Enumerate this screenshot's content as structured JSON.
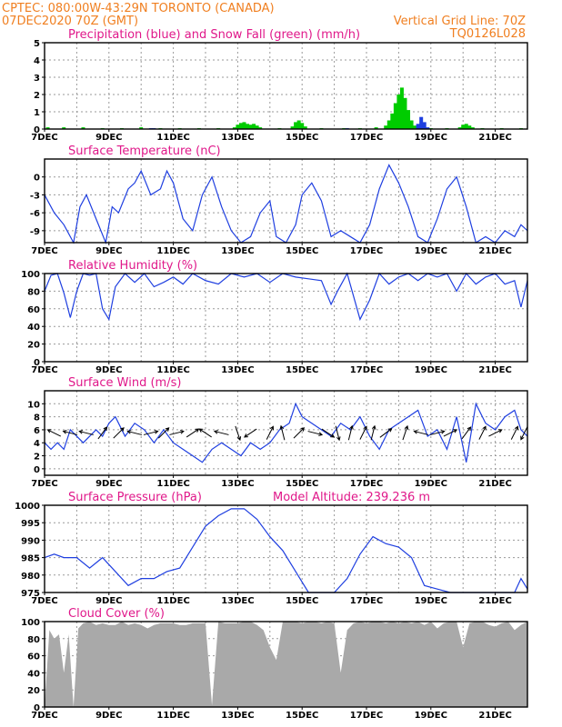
{
  "header": {
    "line1_left": "CPTEC:   080:00W-43:29N   TORONTO (CANADA)",
    "line2_left": "07DEC2020 70Z (GMT)",
    "line2_right": "Vertical Grid Line: 70Z",
    "line3_right": "TQ0126L028"
  },
  "colors": {
    "header": "#f07f20",
    "panel_title": "#e0188a",
    "line": "#1f3fe0",
    "precip": "#1f3fe0",
    "snow": "#00cc00",
    "cloud": "#a9a9a9"
  },
  "chart_data": [
    {
      "type": "bar",
      "title": "Precipitation (blue) and Snow Fall (green) (mm/h)",
      "ylim": [
        0,
        5
      ],
      "yticks": [
        0,
        1,
        2,
        3,
        4,
        5
      ],
      "xlim": [
        0,
        15
      ],
      "xticks": [
        "7DEC",
        "9DEC",
        "11DEC",
        "13DEC",
        "15DEC",
        "17DEC",
        "19DEC",
        "21DEC"
      ],
      "grid": true,
      "series": [
        {
          "name": "Snow Fall",
          "color": "green",
          "x": [
            0.1,
            0.6,
            1.2,
            1.8,
            2.4,
            3.0,
            3.6,
            4.2,
            4.8,
            5.4,
            5.9,
            6.0,
            6.1,
            6.2,
            6.3,
            6.4,
            6.5,
            6.6,
            6.7,
            7.3,
            7.7,
            7.8,
            7.9,
            8.0,
            8.1,
            8.6,
            9.3,
            9.8,
            10.3,
            10.6,
            10.7,
            10.8,
            10.9,
            11.0,
            11.1,
            11.2,
            11.3,
            11.4,
            11.5,
            11.6,
            11.7,
            11.8,
            11.9,
            12.0,
            12.5,
            12.9,
            13.0,
            13.1,
            13.2,
            13.3,
            13.6,
            14.2,
            14.8
          ],
          "values": [
            0.1,
            0.1,
            0.1,
            0.05,
            0.05,
            0.1,
            0.05,
            0.05,
            0.05,
            0.05,
            0.1,
            0.25,
            0.35,
            0.4,
            0.3,
            0.25,
            0.3,
            0.2,
            0.1,
            0.05,
            0.15,
            0.4,
            0.5,
            0.35,
            0.15,
            0.05,
            0.05,
            0.05,
            0.1,
            0.2,
            0.5,
            0.9,
            1.5,
            2.0,
            2.4,
            1.8,
            1.1,
            0.5,
            0.2,
            0.1,
            0.05,
            0.05,
            0.05,
            0.05,
            0.05,
            0.1,
            0.25,
            0.3,
            0.2,
            0.1,
            0.05,
            0.05,
            0.05
          ]
        },
        {
          "name": "Precipitation",
          "color": "blue",
          "x": [
            3.3,
            3.4,
            9.4,
            11.6,
            11.7,
            11.8,
            11.9
          ],
          "values": [
            0.05,
            0.05,
            0.05,
            0.3,
            0.7,
            0.4,
            0.1
          ]
        }
      ]
    },
    {
      "type": "line",
      "title": "Surface Temperature (nC)",
      "ylim": [
        -11,
        3
      ],
      "yticks": [
        -9,
        -6,
        -3,
        0
      ],
      "xlim": [
        0,
        15
      ],
      "xticks": [
        "7DEC",
        "9DEC",
        "11DEC",
        "13DEC",
        "15DEC",
        "17DEC",
        "19DEC",
        "21DEC"
      ],
      "grid": true,
      "series": [
        {
          "name": "",
          "x": [
            0,
            0.3,
            0.6,
            0.9,
            1.1,
            1.3,
            1.6,
            1.9,
            2.1,
            2.3,
            2.6,
            2.8,
            3.0,
            3.3,
            3.6,
            3.8,
            4.0,
            4.3,
            4.6,
            4.9,
            5.2,
            5.5,
            5.8,
            6.1,
            6.4,
            6.7,
            7.0,
            7.2,
            7.5,
            7.8,
            8.0,
            8.3,
            8.6,
            8.9,
            9.2,
            9.5,
            9.8,
            10.1,
            10.4,
            10.7,
            11.0,
            11.3,
            11.6,
            11.9,
            12.2,
            12.5,
            12.8,
            13.1,
            13.4,
            13.7,
            14.0,
            14.3,
            14.6,
            14.8,
            15.0
          ],
          "values": [
            -3,
            -6,
            -8,
            -11,
            -5,
            -3,
            -7,
            -11,
            -5,
            -6,
            -2,
            -1,
            1,
            -3,
            -2,
            1,
            -1,
            -7,
            -9,
            -3,
            0,
            -5,
            -9,
            -11,
            -10,
            -6,
            -4,
            -10,
            -11,
            -8,
            -3,
            -1,
            -4,
            -10,
            -9,
            -10,
            -11,
            -8,
            -2,
            2,
            -1,
            -5,
            -10,
            -11,
            -7,
            -2,
            0,
            -5,
            -11,
            -10,
            -11,
            -9,
            -10,
            -8,
            -9
          ]
        }
      ]
    },
    {
      "type": "line",
      "title": "Relative Humidity (%)",
      "ylim": [
        0,
        100
      ],
      "yticks": [
        0,
        20,
        40,
        60,
        80,
        100
      ],
      "xlim": [
        0,
        15
      ],
      "xticks": [
        "7DEC",
        "9DEC",
        "11DEC",
        "13DEC",
        "15DEC",
        "17DEC",
        "19DEC",
        "21DEC"
      ],
      "grid": true,
      "series": [
        {
          "name": "",
          "x": [
            0,
            0.2,
            0.4,
            0.6,
            0.8,
            1.0,
            1.2,
            1.4,
            1.6,
            1.8,
            2.0,
            2.2,
            2.5,
            2.8,
            3.1,
            3.4,
            3.7,
            4.0,
            4.3,
            4.6,
            5.0,
            5.4,
            5.8,
            6.2,
            6.6,
            7.0,
            7.4,
            7.8,
            8.2,
            8.6,
            8.9,
            9.1,
            9.4,
            9.8,
            10.1,
            10.4,
            10.7,
            11.0,
            11.3,
            11.6,
            11.9,
            12.2,
            12.5,
            12.8,
            13.1,
            13.4,
            13.7,
            14.0,
            14.3,
            14.6,
            14.8,
            15.0
          ],
          "values": [
            80,
            98,
            100,
            78,
            50,
            80,
            100,
            98,
            100,
            60,
            48,
            85,
            100,
            90,
            100,
            85,
            90,
            96,
            88,
            100,
            92,
            88,
            100,
            96,
            100,
            90,
            100,
            96,
            94,
            92,
            65,
            80,
            100,
            48,
            70,
            100,
            88,
            96,
            100,
            92,
            100,
            96,
            100,
            80,
            100,
            88,
            96,
            100,
            88,
            92,
            62,
            92
          ]
        }
      ]
    },
    {
      "type": "line",
      "title": "Surface Wind (m/s)",
      "ylim": [
        -1,
        12
      ],
      "yticks": [
        0,
        2,
        4,
        6,
        8,
        10
      ],
      "xlim": [
        0,
        15
      ],
      "xticks": [
        "7DEC",
        "9DEC",
        "11DEC",
        "13DEC",
        "15DEC",
        "17DEC",
        "19DEC",
        "21DEC"
      ],
      "grid": true,
      "series": [
        {
          "name": "",
          "x": [
            0,
            0.2,
            0.4,
            0.6,
            0.8,
            1.0,
            1.2,
            1.4,
            1.6,
            1.8,
            2.0,
            2.2,
            2.5,
            2.8,
            3.1,
            3.4,
            3.7,
            4.0,
            4.3,
            4.6,
            4.9,
            5.2,
            5.5,
            5.8,
            6.1,
            6.4,
            6.7,
            7.0,
            7.3,
            7.6,
            7.8,
            8.0,
            8.3,
            8.6,
            8.9,
            9.2,
            9.5,
            9.8,
            10.1,
            10.4,
            10.7,
            11.0,
            11.3,
            11.6,
            11.9,
            12.2,
            12.5,
            12.8,
            13.1,
            13.4,
            13.7,
            14.0,
            14.3,
            14.6,
            14.8,
            15.0
          ],
          "values": [
            4,
            3,
            4,
            3,
            6,
            5,
            4,
            5,
            6,
            5,
            7,
            8,
            5,
            7,
            6,
            4,
            6,
            4,
            3,
            2,
            1,
            3,
            4,
            3,
            2,
            4,
            3,
            4,
            6,
            7,
            10,
            8,
            7,
            6,
            5,
            7,
            6,
            8,
            5,
            3,
            6,
            7,
            8,
            9,
            5,
            6,
            3,
            8,
            1,
            10,
            7,
            6,
            8,
            9,
            6,
            5
          ]
        }
      ],
      "wind_arrows": [
        {
          "x": 0.3,
          "u": -2,
          "v": 1
        },
        {
          "x": 0.8,
          "u": -2,
          "v": 0.5
        },
        {
          "x": 1.3,
          "u": -2,
          "v": 0.5
        },
        {
          "x": 1.8,
          "u": 1.5,
          "v": 2
        },
        {
          "x": 2.3,
          "u": 2,
          "v": 2
        },
        {
          "x": 2.8,
          "u": -2,
          "v": 0.5
        },
        {
          "x": 3.3,
          "u": 2,
          "v": 0.5
        },
        {
          "x": 3.7,
          "u": 1.5,
          "v": 1.5
        },
        {
          "x": 4.1,
          "u": 2,
          "v": 0.5
        },
        {
          "x": 4.6,
          "u": 1.5,
          "v": 1
        },
        {
          "x": 5.0,
          "u": -1.5,
          "v": 1
        },
        {
          "x": 5.5,
          "u": -2,
          "v": 0.5
        },
        {
          "x": 6.0,
          "u": 0.5,
          "v": -1.5
        },
        {
          "x": 6.4,
          "u": -1.5,
          "v": -1
        },
        {
          "x": 7.0,
          "u": 1,
          "v": 2
        },
        {
          "x": 7.4,
          "u": -0.5,
          "v": 2
        },
        {
          "x": 7.9,
          "u": 1.5,
          "v": 1.5
        },
        {
          "x": 8.4,
          "u": 2,
          "v": -0.5
        },
        {
          "x": 8.8,
          "u": 1.5,
          "v": -1
        },
        {
          "x": 9.1,
          "u": 0.5,
          "v": -2
        },
        {
          "x": 9.5,
          "u": 0.5,
          "v": 2
        },
        {
          "x": 9.9,
          "u": 1,
          "v": 2
        },
        {
          "x": 10.2,
          "u": 0.5,
          "v": 2
        },
        {
          "x": 10.6,
          "u": 2,
          "v": 1.5
        },
        {
          "x": 11.2,
          "u": 0.5,
          "v": 1.5
        },
        {
          "x": 11.7,
          "u": -2,
          "v": 0.5
        },
        {
          "x": 12.2,
          "u": 2,
          "v": 0.5
        },
        {
          "x": 12.6,
          "u": 2,
          "v": 1
        },
        {
          "x": 13.1,
          "u": 1.5,
          "v": 2
        },
        {
          "x": 13.6,
          "u": 1,
          "v": 2
        },
        {
          "x": 14.0,
          "u": 2,
          "v": 1
        },
        {
          "x": 14.6,
          "u": 1,
          "v": 2
        },
        {
          "x": 14.9,
          "u": -1,
          "v": -2
        }
      ]
    },
    {
      "type": "line",
      "title": "Surface Pressure (hPa)",
      "annotation": "Model Altitude: 239.236  m",
      "ylim": [
        975,
        1000
      ],
      "yticks": [
        975,
        980,
        985,
        990,
        995,
        1000
      ],
      "xlim": [
        0,
        15
      ],
      "xticks": [
        "7DEC",
        "9DEC",
        "11DEC",
        "13DEC",
        "15DEC",
        "17DEC",
        "19DEC",
        "21DEC"
      ],
      "grid": true,
      "series": [
        {
          "name": "",
          "x": [
            0,
            0.3,
            0.6,
            1.0,
            1.4,
            1.8,
            2.2,
            2.6,
            3.0,
            3.4,
            3.8,
            4.2,
            4.6,
            5.0,
            5.4,
            5.8,
            6.2,
            6.6,
            7.0,
            7.4,
            7.8,
            8.2,
            8.6,
            9.0,
            9.4,
            9.8,
            10.2,
            10.6,
            11.0,
            11.4,
            11.8,
            12.2,
            12.6,
            13.0,
            13.4,
            13.8,
            14.2,
            14.6,
            14.8,
            15.0
          ],
          "values": [
            985,
            986,
            985,
            985,
            982,
            985,
            981,
            977,
            979,
            979,
            981,
            982,
            988,
            994,
            997,
            999,
            999,
            996,
            991,
            987,
            981,
            975,
            974,
            974,
            979,
            986,
            991,
            989,
            988,
            985,
            977,
            976,
            975,
            974,
            975,
            974,
            974,
            975,
            979,
            976
          ]
        }
      ]
    },
    {
      "type": "area",
      "title": "Cloud Cover (%)",
      "ylim": [
        0,
        100
      ],
      "yticks": [
        0,
        20,
        40,
        60,
        80,
        100
      ],
      "xlim": [
        0,
        15
      ],
      "xticks": [
        "7DEC",
        "9DEC",
        "11DEC",
        "13DEC",
        "15DEC",
        "17DEC",
        "19DEC",
        "21DEC"
      ],
      "grid": true,
      "series": [
        {
          "name": "",
          "x": [
            0,
            0.15,
            0.3,
            0.45,
            0.6,
            0.75,
            0.9,
            1.05,
            1.2,
            1.4,
            1.6,
            1.8,
            2.0,
            2.2,
            2.4,
            2.6,
            2.8,
            3.0,
            3.2,
            3.4,
            3.6,
            3.8,
            4.0,
            4.2,
            4.4,
            4.6,
            4.8,
            5.0,
            5.2,
            5.4,
            5.6,
            5.8,
            6.0,
            6.2,
            6.4,
            6.6,
            6.8,
            7.0,
            7.2,
            7.4,
            7.6,
            7.8,
            8.0,
            8.2,
            8.4,
            8.6,
            8.8,
            9.0,
            9.2,
            9.4,
            9.6,
            9.8,
            10.0,
            10.2,
            10.4,
            10.6,
            10.8,
            11.0,
            11.2,
            11.4,
            11.6,
            11.8,
            12.0,
            12.2,
            12.4,
            12.6,
            12.8,
            13.0,
            13.2,
            13.4,
            13.6,
            13.8,
            14.0,
            14.2,
            14.4,
            14.6,
            14.8,
            15.0
          ],
          "values": [
            0,
            90,
            80,
            85,
            40,
            85,
            0,
            92,
            98,
            100,
            96,
            98,
            96,
            96,
            100,
            96,
            98,
            96,
            92,
            96,
            98,
            98,
            98,
            96,
            96,
            98,
            98,
            98,
            2,
            100,
            98,
            98,
            98,
            100,
            100,
            96,
            90,
            70,
            55,
            100,
            100,
            100,
            98,
            100,
            100,
            98,
            100,
            98,
            40,
            90,
            98,
            100,
            98,
            100,
            100,
            98,
            100,
            98,
            100,
            98,
            100,
            96,
            100,
            92,
            98,
            100,
            100,
            70,
            98,
            100,
            100,
            96,
            94,
            98,
            100,
            90,
            96,
            100
          ]
        }
      ]
    }
  ]
}
